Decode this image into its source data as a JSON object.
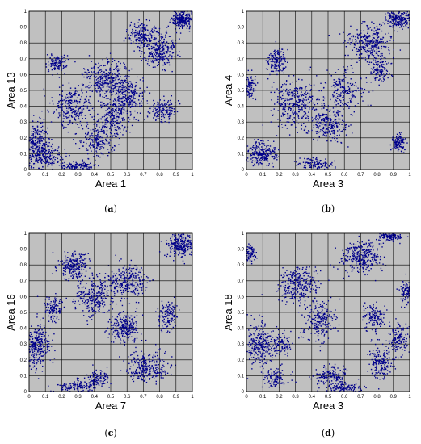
{
  "colors": {
    "plot_bg": "#c0c0c0",
    "grid": "#000000",
    "marker": "#00008b"
  },
  "chart_data": [
    {
      "type": "scatter",
      "panel_label": "(a)",
      "xlabel": "Area 1",
      "ylabel": "Area 13",
      "xlim": [
        0,
        1
      ],
      "ylim": [
        0,
        1
      ],
      "xticks": [
        "0",
        "0.1",
        "0.2",
        "0.3",
        "0.4",
        "0.5",
        "0.6",
        "0.7",
        "0.8",
        "0.9",
        "1"
      ],
      "yticks": [
        "0",
        "0.1",
        "0.2",
        "0.3",
        "0.4",
        "0.5",
        "0.6",
        "0.7",
        "0.8",
        "0.9",
        "1"
      ],
      "grid": true,
      "clusters": [
        {
          "cx": 0.05,
          "cy": 0.15,
          "sx": 0.04,
          "sy": 0.07,
          "n": 320
        },
        {
          "cx": 0.12,
          "cy": 0.08,
          "sx": 0.05,
          "sy": 0.03,
          "n": 120
        },
        {
          "cx": 0.17,
          "cy": 0.67,
          "sx": 0.03,
          "sy": 0.03,
          "n": 110
        },
        {
          "cx": 0.27,
          "cy": 0.4,
          "sx": 0.06,
          "sy": 0.07,
          "n": 260
        },
        {
          "cx": 0.3,
          "cy": 0.02,
          "sx": 0.05,
          "sy": 0.015,
          "n": 130
        },
        {
          "cx": 0.42,
          "cy": 0.18,
          "sx": 0.05,
          "sy": 0.05,
          "n": 200
        },
        {
          "cx": 0.47,
          "cy": 0.58,
          "sx": 0.07,
          "sy": 0.06,
          "n": 300
        },
        {
          "cx": 0.52,
          "cy": 0.33,
          "sx": 0.05,
          "sy": 0.06,
          "n": 220
        },
        {
          "cx": 0.6,
          "cy": 0.47,
          "sx": 0.05,
          "sy": 0.06,
          "n": 240
        },
        {
          "cx": 0.7,
          "cy": 0.85,
          "sx": 0.05,
          "sy": 0.04,
          "n": 200
        },
        {
          "cx": 0.82,
          "cy": 0.37,
          "sx": 0.04,
          "sy": 0.04,
          "n": 150
        },
        {
          "cx": 0.8,
          "cy": 0.75,
          "sx": 0.05,
          "sy": 0.05,
          "n": 260
        },
        {
          "cx": 0.94,
          "cy": 0.95,
          "sx": 0.03,
          "sy": 0.03,
          "n": 250
        }
      ]
    },
    {
      "type": "scatter",
      "panel_label": "(b)",
      "xlabel": "Area 3",
      "ylabel": "Area 4",
      "xlim": [
        0,
        1
      ],
      "ylim": [
        0,
        1
      ],
      "xticks": [
        "0",
        "0.1",
        "0.2",
        "0.3",
        "0.4",
        "0.5",
        "0.6",
        "0.7",
        "0.8",
        "0.9",
        "1"
      ],
      "yticks": [
        "0",
        "0.1",
        "0.2",
        "0.3",
        "0.4",
        "0.5",
        "0.6",
        "0.7",
        "0.8",
        "0.9",
        "1"
      ],
      "grid": true,
      "clusters": [
        {
          "cx": 0.02,
          "cy": 0.52,
          "sx": 0.02,
          "sy": 0.04,
          "n": 100
        },
        {
          "cx": 0.1,
          "cy": 0.1,
          "sx": 0.04,
          "sy": 0.04,
          "n": 240
        },
        {
          "cx": 0.18,
          "cy": 0.68,
          "sx": 0.03,
          "sy": 0.04,
          "n": 150
        },
        {
          "cx": 0.3,
          "cy": 0.42,
          "sx": 0.07,
          "sy": 0.07,
          "n": 320
        },
        {
          "cx": 0.42,
          "cy": 0.03,
          "sx": 0.05,
          "sy": 0.02,
          "n": 120
        },
        {
          "cx": 0.5,
          "cy": 0.28,
          "sx": 0.06,
          "sy": 0.05,
          "n": 240
        },
        {
          "cx": 0.6,
          "cy": 0.5,
          "sx": 0.06,
          "sy": 0.08,
          "n": 200
        },
        {
          "cx": 0.75,
          "cy": 0.8,
          "sx": 0.07,
          "sy": 0.06,
          "n": 320
        },
        {
          "cx": 0.82,
          "cy": 0.62,
          "sx": 0.03,
          "sy": 0.04,
          "n": 110
        },
        {
          "cx": 0.93,
          "cy": 0.17,
          "sx": 0.02,
          "sy": 0.03,
          "n": 110
        },
        {
          "cx": 0.93,
          "cy": 0.95,
          "sx": 0.04,
          "sy": 0.03,
          "n": 220
        }
      ]
    },
    {
      "type": "scatter",
      "panel_label": "(c)",
      "xlabel": "Area 7",
      "ylabel": "Area 16",
      "xlim": [
        0,
        1
      ],
      "ylim": [
        0,
        1
      ],
      "xticks": [
        "0",
        "0.1",
        "0.2",
        "0.3",
        "0.4",
        "0.5",
        "0.6",
        "0.7",
        "0.8",
        "0.9",
        "1"
      ],
      "yticks": [
        "0",
        "0.1",
        "0.2",
        "0.3",
        "0.4",
        "0.5",
        "0.6",
        "0.7",
        "0.8",
        "0.9",
        "1"
      ],
      "grid": true,
      "clusters": [
        {
          "cx": 0.04,
          "cy": 0.28,
          "sx": 0.04,
          "sy": 0.07,
          "n": 330
        },
        {
          "cx": 0.15,
          "cy": 0.53,
          "sx": 0.03,
          "sy": 0.04,
          "n": 120
        },
        {
          "cx": 0.27,
          "cy": 0.8,
          "sx": 0.05,
          "sy": 0.04,
          "n": 220
        },
        {
          "cx": 0.3,
          "cy": 0.03,
          "sx": 0.07,
          "sy": 0.02,
          "n": 130
        },
        {
          "cx": 0.42,
          "cy": 0.08,
          "sx": 0.04,
          "sy": 0.03,
          "n": 100
        },
        {
          "cx": 0.4,
          "cy": 0.6,
          "sx": 0.06,
          "sy": 0.06,
          "n": 260
        },
        {
          "cx": 0.58,
          "cy": 0.4,
          "sx": 0.05,
          "sy": 0.05,
          "n": 240
        },
        {
          "cx": 0.6,
          "cy": 0.7,
          "sx": 0.06,
          "sy": 0.05,
          "n": 260
        },
        {
          "cx": 0.72,
          "cy": 0.15,
          "sx": 0.06,
          "sy": 0.05,
          "n": 260
        },
        {
          "cx": 0.85,
          "cy": 0.48,
          "sx": 0.03,
          "sy": 0.05,
          "n": 130
        },
        {
          "cx": 0.93,
          "cy": 0.93,
          "sx": 0.04,
          "sy": 0.04,
          "n": 280
        }
      ]
    },
    {
      "type": "scatter",
      "panel_label": "(d)",
      "xlabel": "Area 3",
      "ylabel": "Area 18",
      "xlim": [
        0,
        1
      ],
      "ylim": [
        0,
        1
      ],
      "xticks": [
        "0",
        "0.1",
        "0.2",
        "0.3",
        "0.4",
        "0.5",
        "0.6",
        "0.7",
        "0.8",
        "0.9",
        "1"
      ],
      "yticks": [
        "0",
        "0.1",
        "0.2",
        "0.3",
        "0.4",
        "0.5",
        "0.6",
        "0.7",
        "0.8",
        "0.9",
        "1"
      ],
      "grid": true,
      "clusters": [
        {
          "cx": 0.02,
          "cy": 0.87,
          "sx": 0.02,
          "sy": 0.03,
          "n": 80
        },
        {
          "cx": 0.08,
          "cy": 0.3,
          "sx": 0.04,
          "sy": 0.07,
          "n": 260
        },
        {
          "cx": 0.18,
          "cy": 0.08,
          "sx": 0.04,
          "sy": 0.03,
          "n": 110
        },
        {
          "cx": 0.2,
          "cy": 0.3,
          "sx": 0.04,
          "sy": 0.04,
          "n": 120
        },
        {
          "cx": 0.32,
          "cy": 0.67,
          "sx": 0.06,
          "sy": 0.06,
          "n": 300
        },
        {
          "cx": 0.45,
          "cy": 0.45,
          "sx": 0.05,
          "sy": 0.06,
          "n": 220
        },
        {
          "cx": 0.52,
          "cy": 0.1,
          "sx": 0.05,
          "sy": 0.03,
          "n": 150
        },
        {
          "cx": 0.6,
          "cy": 0.02,
          "sx": 0.06,
          "sy": 0.015,
          "n": 110
        },
        {
          "cx": 0.7,
          "cy": 0.85,
          "sx": 0.07,
          "sy": 0.05,
          "n": 300
        },
        {
          "cx": 0.78,
          "cy": 0.47,
          "sx": 0.03,
          "sy": 0.05,
          "n": 130
        },
        {
          "cx": 0.82,
          "cy": 0.18,
          "sx": 0.04,
          "sy": 0.05,
          "n": 180
        },
        {
          "cx": 0.93,
          "cy": 0.33,
          "sx": 0.03,
          "sy": 0.05,
          "n": 150
        },
        {
          "cx": 0.88,
          "cy": 0.98,
          "sx": 0.04,
          "sy": 0.015,
          "n": 120
        },
        {
          "cx": 0.98,
          "cy": 0.63,
          "sx": 0.02,
          "sy": 0.04,
          "n": 90
        }
      ]
    }
  ]
}
